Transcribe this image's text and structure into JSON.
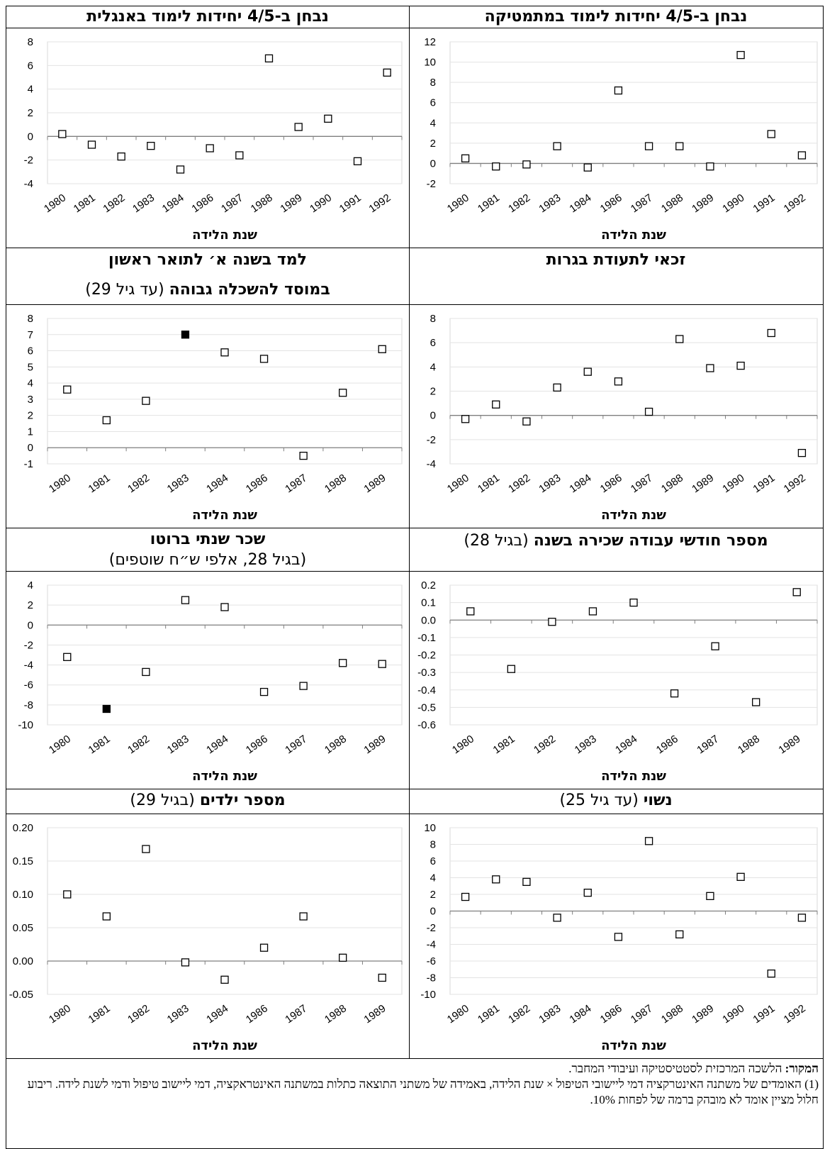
{
  "chart_data": [
    {
      "type": "scatter",
      "title": "נבחן ב-4/5 יחידות לימוד במתמטיקה",
      "xlabel": "שנת הלידה",
      "categories": [
        "1980",
        "1981",
        "1982",
        "1983",
        "1984",
        "1986",
        "1987",
        "1988",
        "1989",
        "1990",
        "1991",
        "1992"
      ],
      "ylim": [
        -2,
        12
      ],
      "yticks": [
        -2,
        0,
        2,
        4,
        6,
        8,
        10,
        12
      ],
      "ydec": 0,
      "series": [
        {
          "values": [
            0.5,
            -0.3,
            -0.1,
            1.7,
            -0.4,
            7.2,
            1.7,
            1.7,
            -0.3,
            10.7,
            2.9,
            0.8
          ],
          "significant": [
            false,
            false,
            false,
            false,
            false,
            false,
            false,
            false,
            false,
            false,
            false,
            false
          ]
        }
      ]
    },
    {
      "type": "scatter",
      "title": "נבחן ב-4/5 יחידות לימוד באנגלית",
      "xlabel": "שנת הלידה",
      "categories": [
        "1980",
        "1981",
        "1982",
        "1983",
        "1984",
        "1986",
        "1987",
        "1988",
        "1989",
        "1990",
        "1991",
        "1992"
      ],
      "ylim": [
        -4,
        8
      ],
      "yticks": [
        -4,
        -2,
        0,
        2,
        4,
        6,
        8
      ],
      "ydec": 0,
      "series": [
        {
          "values": [
            0.2,
            -0.7,
            -1.7,
            -0.8,
            -2.8,
            -1.0,
            -1.6,
            6.6,
            0.8,
            1.5,
            -2.1,
            5.4
          ],
          "significant": [
            false,
            false,
            false,
            false,
            false,
            false,
            false,
            false,
            false,
            false,
            false,
            false
          ]
        }
      ]
    },
    {
      "type": "scatter",
      "title": "זכאי לתעודת בגרות",
      "xlabel": "שנת הלידה",
      "categories": [
        "1980",
        "1981",
        "1982",
        "1983",
        "1984",
        "1986",
        "1987",
        "1988",
        "1989",
        "1990",
        "1991",
        "1992"
      ],
      "ylim": [
        -4,
        8
      ],
      "yticks": [
        -4,
        -2,
        0,
        2,
        4,
        6,
        8
      ],
      "ydec": 0,
      "series": [
        {
          "values": [
            -0.3,
            0.9,
            -0.5,
            2.3,
            3.6,
            2.8,
            0.3,
            6.3,
            3.9,
            4.1,
            6.8,
            -3.1
          ],
          "significant": [
            false,
            false,
            false,
            false,
            false,
            false,
            false,
            false,
            false,
            false,
            false,
            false
          ]
        }
      ]
    },
    {
      "type": "scatter",
      "title": "למד בשנה א׳ לתואר ראשון",
      "subtitle_bold": "במוסד להשכלה גבוהה",
      "subtitle": "(עד גיל 29)",
      "xlabel": "שנת הלידה",
      "categories": [
        "1980",
        "1981",
        "1982",
        "1983",
        "1984",
        "1986",
        "1987",
        "1988",
        "1989"
      ],
      "ylim": [
        -1,
        8
      ],
      "yticks": [
        -1,
        0,
        1,
        2,
        3,
        4,
        5,
        6,
        7,
        8
      ],
      "ydec": 0,
      "series": [
        {
          "values": [
            3.6,
            1.7,
            2.9,
            7.0,
            5.9,
            5.5,
            -0.5,
            3.4,
            6.1
          ],
          "significant": [
            false,
            false,
            false,
            true,
            false,
            false,
            false,
            false,
            false
          ]
        }
      ]
    },
    {
      "type": "scatter",
      "title": "מספר חודשי עבודה שכירה בשנה",
      "subtitle": "(בגיל 28)",
      "xlabel": "שנת הלידה",
      "categories": [
        "1980",
        "1981",
        "1982",
        "1983",
        "1984",
        "1986",
        "1987",
        "1988",
        "1989"
      ],
      "ylim": [
        -0.6,
        0.2
      ],
      "yticks": [
        -0.6,
        -0.5,
        -0.4,
        -0.3,
        -0.2,
        -0.1,
        0.0,
        0.1,
        0.2
      ],
      "ydec": 1,
      "series": [
        {
          "values": [
            0.05,
            -0.28,
            -0.01,
            0.05,
            0.1,
            -0.42,
            -0.15,
            -0.47,
            0.16
          ],
          "significant": [
            false,
            false,
            false,
            false,
            false,
            false,
            false,
            false,
            false
          ]
        }
      ]
    },
    {
      "type": "scatter",
      "title": "שכר שנתי ברוטו",
      "subtitle": "(בגיל 28, אלפי ש״ח שוטפים)",
      "xlabel": "שנת הלידה",
      "categories": [
        "1980",
        "1981",
        "1982",
        "1983",
        "1984",
        "1986",
        "1987",
        "1988",
        "1989"
      ],
      "ylim": [
        -10,
        4
      ],
      "yticks": [
        -10,
        -8,
        -6,
        -4,
        -2,
        0,
        2,
        4
      ],
      "ydec": 0,
      "series": [
        {
          "values": [
            -3.2,
            -8.4,
            -4.7,
            2.5,
            1.8,
            -6.7,
            -6.1,
            -3.8,
            -3.9
          ],
          "significant": [
            false,
            true,
            false,
            false,
            false,
            false,
            false,
            false,
            false
          ]
        }
      ]
    },
    {
      "type": "scatter",
      "title": "נשוי",
      "subtitle": "(עד גיל 25)",
      "xlabel": "שנת הלידה",
      "categories": [
        "1980",
        "1981",
        "1982",
        "1983",
        "1984",
        "1986",
        "1987",
        "1988",
        "1989",
        "1990",
        "1991",
        "1992"
      ],
      "ylim": [
        -10,
        10
      ],
      "yticks": [
        -10,
        -8,
        -6,
        -4,
        -2,
        0,
        2,
        4,
        6,
        8,
        10
      ],
      "ydec": 0,
      "series": [
        {
          "values": [
            1.7,
            3.8,
            3.5,
            -0.8,
            2.2,
            -3.1,
            8.4,
            -2.8,
            1.8,
            4.1,
            -7.5,
            -0.8
          ],
          "significant": [
            false,
            false,
            false,
            false,
            false,
            false,
            false,
            false,
            false,
            false,
            false,
            false
          ]
        }
      ]
    },
    {
      "type": "scatter",
      "title": "מספר ילדים",
      "subtitle": "(בגיל 29)",
      "xlabel": "שנת הלידה",
      "categories": [
        "1980",
        "1981",
        "1982",
        "1983",
        "1984",
        "1986",
        "1987",
        "1988",
        "1989"
      ],
      "ylim": [
        -0.05,
        0.2
      ],
      "yticks": [
        -0.05,
        0.0,
        0.05,
        0.1,
        0.15,
        0.2
      ],
      "ydec": 2,
      "series": [
        {
          "values": [
            0.1,
            0.067,
            0.168,
            -0.002,
            -0.028,
            0.02,
            0.067,
            0.005,
            -0.025
          ],
          "significant": [
            false,
            false,
            false,
            false,
            false,
            false,
            false,
            false,
            false
          ]
        }
      ]
    }
  ],
  "footer": {
    "source_label": "המקור:",
    "source_text": " הלשכה המרכזית לסטטיסטיקה ועיבודי המחבר.",
    "note": "(1) האומדים של משתנה האינטרקציה דמי ליישובי הטיפול × שנת הלידה, באמידה של משתני התוצאה כתלות במשתנה האינטראקציה, דמי ליישוב טיפול ודמי לשנת לידה. ריבוע חלול מציין אומד לא מובהק ברמה של לפחות 10%."
  }
}
